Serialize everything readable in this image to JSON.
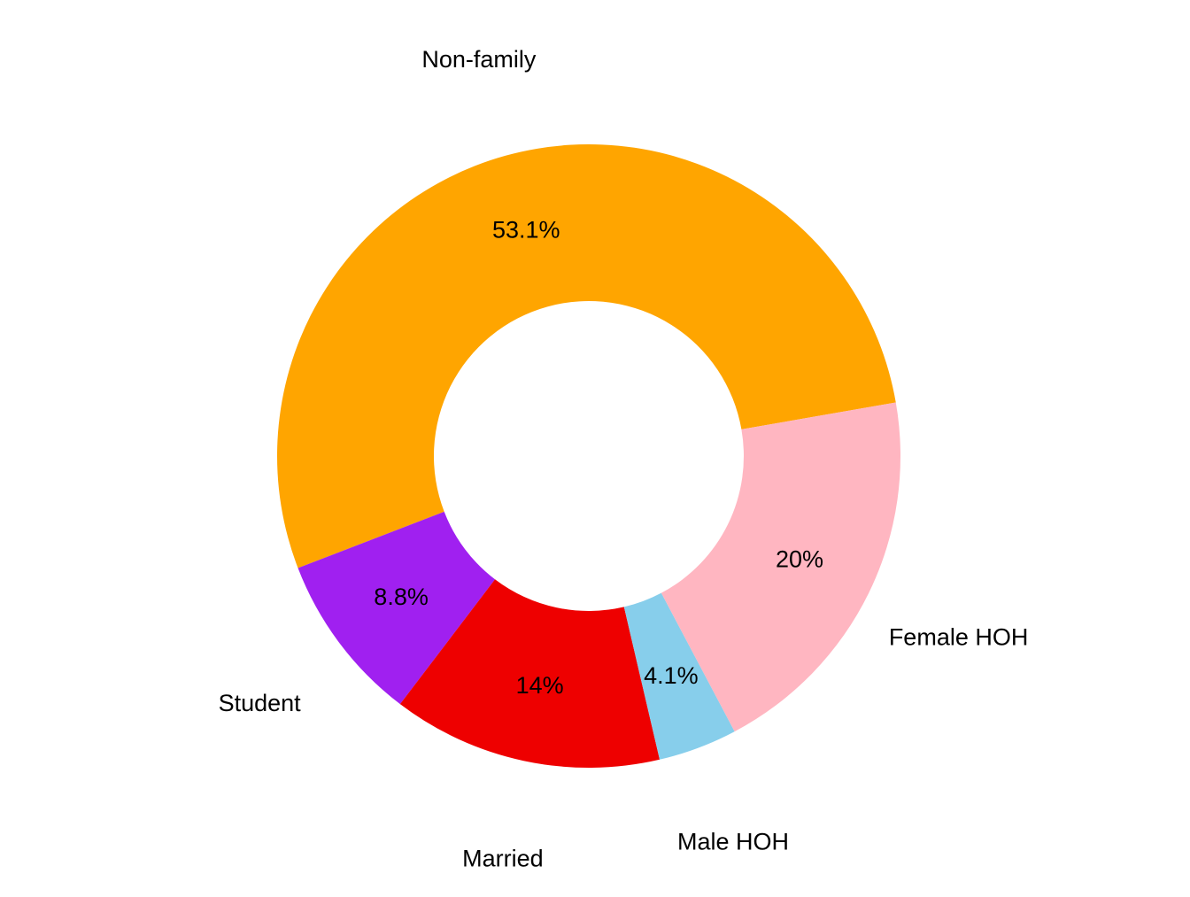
{
  "chart_data": {
    "type": "pie",
    "donut": true,
    "title": "",
    "categories": [
      "Non-family",
      "Student",
      "Married",
      "Male HOH",
      "Female HOH"
    ],
    "values": [
      53.1,
      8.8,
      14,
      4.1,
      20
    ],
    "value_labels": [
      "53.1%",
      "8.8%",
      "14%",
      "4.1%",
      "20%"
    ],
    "colors": [
      "#FFA500",
      "#A020F0",
      "#EE0000",
      "#87CEEB",
      "#FFB6C1"
    ],
    "legend": "none"
  }
}
